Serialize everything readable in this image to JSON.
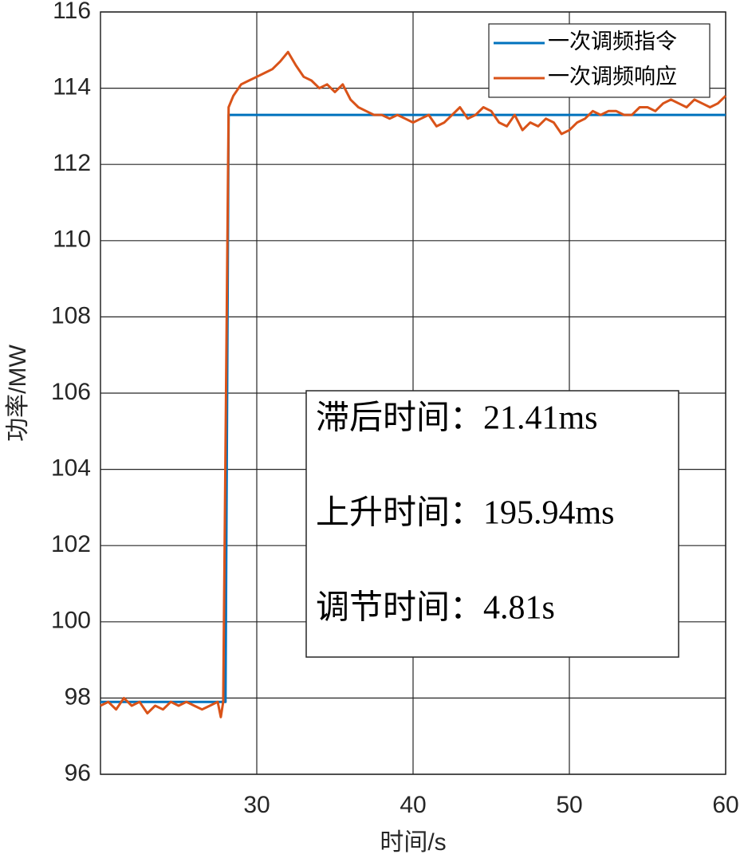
{
  "chart_data": {
    "type": "line",
    "xlabel": "时间/s",
    "ylabel": "功率/MW",
    "xlim": [
      20,
      60
    ],
    "ylim": [
      96,
      116
    ],
    "xticks": [
      30,
      40,
      50,
      60
    ],
    "yticks": [
      96,
      98,
      100,
      102,
      104,
      106,
      108,
      110,
      112,
      114,
      116
    ],
    "grid": true,
    "legend": "upper right",
    "series": [
      {
        "name": "一次调频指令",
        "color": "#0072bd",
        "x": [
          20,
          28.0,
          28.2,
          60
        ],
        "values": [
          97.9,
          97.9,
          113.3,
          113.3
        ]
      },
      {
        "name": "一次调频响应",
        "color": "#d95319",
        "x": [
          20,
          20.5,
          21,
          21.5,
          22,
          22.5,
          23,
          23.5,
          24,
          24.5,
          25,
          25.5,
          26,
          26.5,
          27,
          27.5,
          27.7,
          27.85,
          28.2,
          28.5,
          29,
          29.5,
          30,
          30.5,
          31,
          31.5,
          32,
          32.5,
          33,
          33.5,
          34,
          34.5,
          35,
          35.5,
          36,
          36.5,
          37,
          37.5,
          38,
          38.5,
          39,
          39.5,
          40,
          40.5,
          41,
          41.5,
          42,
          42.5,
          43,
          43.5,
          44,
          44.5,
          45,
          45.5,
          46,
          46.5,
          47,
          47.5,
          48,
          48.5,
          49,
          49.5,
          50,
          50.5,
          51,
          51.5,
          52,
          52.5,
          53,
          53.5,
          54,
          54.5,
          55,
          55.5,
          56,
          56.5,
          57,
          57.5,
          58,
          58.5,
          59,
          59.5,
          60
        ],
        "values": [
          97.8,
          97.9,
          97.7,
          98.0,
          97.8,
          97.9,
          97.6,
          97.8,
          97.7,
          97.9,
          97.8,
          97.9,
          97.8,
          97.7,
          97.8,
          97.9,
          97.5,
          97.9,
          113.5,
          113.8,
          114.1,
          114.2,
          114.3,
          114.4,
          114.5,
          114.7,
          114.95,
          114.6,
          114.3,
          114.2,
          114.0,
          114.1,
          113.9,
          114.1,
          113.7,
          113.5,
          113.4,
          113.3,
          113.3,
          113.2,
          113.3,
          113.2,
          113.1,
          113.2,
          113.3,
          113.0,
          113.1,
          113.3,
          113.5,
          113.2,
          113.3,
          113.5,
          113.4,
          113.1,
          113.0,
          113.3,
          112.9,
          113.1,
          113.0,
          113.2,
          113.1,
          112.8,
          112.9,
          113.1,
          113.2,
          113.4,
          113.3,
          113.4,
          113.4,
          113.3,
          113.3,
          113.5,
          113.5,
          113.4,
          113.6,
          113.7,
          113.6,
          113.5,
          113.7,
          113.6,
          113.5,
          113.6,
          113.8
        ]
      }
    ],
    "annotations": [
      "滞后时间：21.41ms",
      "上升时间：195.94ms",
      "调节时间：4.81s"
    ]
  }
}
